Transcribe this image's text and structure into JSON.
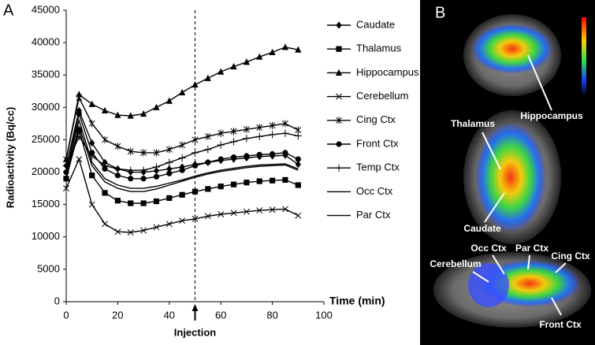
{
  "chart_data": {
    "type": "line",
    "panel_label": "A",
    "x_label": "Time (min)",
    "y_label": "Radioactivity (Bq/cc)",
    "x": [
      0,
      5,
      10,
      15,
      20,
      25,
      30,
      35,
      40,
      45,
      50,
      55,
      60,
      65,
      70,
      75,
      80,
      85,
      90
    ],
    "xlim": [
      0,
      100
    ],
    "xticks": [
      0,
      20,
      40,
      60,
      80,
      100
    ],
    "ylim": [
      0,
      45000
    ],
    "yticks": [
      0,
      5000,
      10000,
      15000,
      20000,
      25000,
      30000,
      35000,
      40000,
      45000
    ],
    "grid": false,
    "legend": "right",
    "annotation": {
      "x": 50,
      "label": "Injection"
    },
    "series": [
      {
        "name": "Caudate",
        "color": "#000000",
        "marker": "diamond",
        "values": [
          21000,
          29500,
          24500,
          21500,
          20500,
          20000,
          20000,
          20200,
          20500,
          20800,
          21200,
          21500,
          21800,
          22000,
          22200,
          22400,
          22500,
          22600,
          21200
        ]
      },
      {
        "name": "Thalamus",
        "color": "#000000",
        "marker": "square",
        "values": [
          19000,
          26500,
          19500,
          16800,
          15600,
          15200,
          15200,
          15500,
          16000,
          16500,
          17000,
          17400,
          17800,
          18100,
          18400,
          18600,
          18700,
          18800,
          18000
        ]
      },
      {
        "name": "Hippocampus",
        "color": "#000000",
        "marker": "triangle",
        "values": [
          22000,
          32000,
          30500,
          29500,
          28800,
          28700,
          29000,
          30000,
          31000,
          32300,
          33500,
          34500,
          35500,
          36300,
          37000,
          37800,
          38500,
          39300,
          38900
        ]
      },
      {
        "name": "Cerebellum",
        "color": "#000000",
        "marker": "x",
        "values": [
          17500,
          22000,
          15000,
          12000,
          10800,
          10700,
          11000,
          11500,
          12000,
          12500,
          12800,
          13200,
          13500,
          13700,
          13900,
          14100,
          14200,
          14300,
          13300
        ]
      },
      {
        "name": "Cing Ctx",
        "color": "#000000",
        "marker": "asterisk",
        "values": [
          22000,
          31500,
          27500,
          25000,
          24000,
          23200,
          23000,
          23000,
          23500,
          24200,
          25000,
          25500,
          26000,
          26300,
          26600,
          26900,
          27200,
          27500,
          26500
        ]
      },
      {
        "name": "Front Ctx",
        "color": "#000000",
        "marker": "circle",
        "values": [
          20000,
          29000,
          23000,
          20500,
          19500,
          19000,
          19000,
          19300,
          19800,
          20300,
          21000,
          21500,
          22000,
          22300,
          22500,
          22700,
          22800,
          23000,
          22000
        ]
      },
      {
        "name": "Temp Ctx",
        "color": "#000000",
        "marker": "plus",
        "values": [
          21000,
          25500,
          22500,
          21000,
          20500,
          20300,
          20300,
          20800,
          21500,
          22200,
          23000,
          23500,
          24200,
          24700,
          25200,
          25500,
          25800,
          26000,
          25600
        ]
      },
      {
        "name": "Occ Ctx",
        "color": "#000000",
        "marker": "none",
        "values": [
          20000,
          28000,
          21500,
          19000,
          18000,
          17500,
          17500,
          17800,
          18300,
          18800,
          19400,
          19900,
          20300,
          20600,
          20900,
          21100,
          21200,
          21300,
          20500
        ]
      },
      {
        "name": "Par Ctx",
        "color": "#000000",
        "marker": "none",
        "values": [
          19500,
          27000,
          21000,
          18500,
          17500,
          17000,
          17000,
          17400,
          18000,
          18600,
          19200,
          19700,
          20100,
          20400,
          20700,
          20900,
          21000,
          21100,
          20300
        ]
      }
    ]
  },
  "image_panel": {
    "panel_label": "B",
    "region_labels": [
      "Hippocampus",
      "Thalamus",
      "Caudate",
      "Occ Ctx",
      "Par Ctx",
      "Cing Ctx",
      "Cerebellum",
      "Front Ctx"
    ]
  }
}
